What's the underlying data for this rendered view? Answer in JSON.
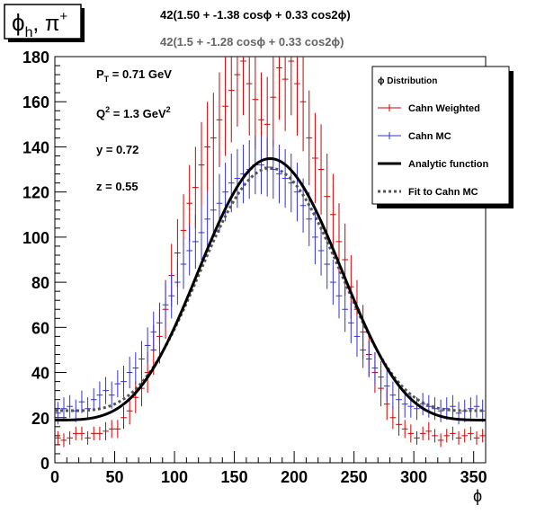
{
  "title_box": {
    "label": "ϕ",
    "sub": "h",
    "sep": ", ",
    "pi": "π",
    "sup": "+"
  },
  "formula_1": "42(1.50 + -1.38 cosϕ + 0.33 cos2ϕ)",
  "formula_2": "42(1.5 + -1.28 cosϕ + 0.33 cos2ϕ)",
  "kinematics": [
    {
      "base": "P",
      "sub": "T",
      "sup": "",
      "rest": " = 0.71 GeV"
    },
    {
      "base": "Q",
      "sub": "",
      "sup": "2",
      "rest": " = 1.3 GeV",
      "sup2": "2"
    },
    {
      "base": "y",
      "sub": "",
      "sup": "",
      "rest": " = 0.72"
    },
    {
      "base": "z",
      "sub": "",
      "sup": "",
      "rest": " = 0.55"
    }
  ],
  "legend": {
    "header": "ϕ Distribution",
    "entries": [
      "Cahn Weighted",
      "Cahn MC",
      "Analytic function",
      "Fit to Cahn MC"
    ]
  },
  "colors": {
    "weighted": "#cc0000",
    "mc": "#3333cc",
    "analytic": "#000000",
    "fit": "#555555"
  },
  "chart_data": {
    "type": "scatter",
    "xlabel": "ϕ",
    "ylabel": "",
    "xlim": [
      0,
      360
    ],
    "ylim": [
      0,
      180
    ],
    "xticks": [
      0,
      50,
      100,
      150,
      200,
      250,
      300,
      350
    ],
    "yticks": [
      0,
      20,
      40,
      60,
      80,
      100,
      120,
      140,
      160,
      180
    ],
    "bin_width": 5,
    "series": [
      {
        "name": "Cahn Weighted",
        "x": [
          2.5,
          7.5,
          12.5,
          17.5,
          22.5,
          27.5,
          32.5,
          37.5,
          42.5,
          47.5,
          52.5,
          57.5,
          62.5,
          67.5,
          72.5,
          77.5,
          82.5,
          87.5,
          92.5,
          97.5,
          102.5,
          107.5,
          112.5,
          117.5,
          122.5,
          127.5,
          132.5,
          137.5,
          142.5,
          147.5,
          152.5,
          157.5,
          162.5,
          167.5,
          172.5,
          177.5,
          182.5,
          187.5,
          192.5,
          197.5,
          202.5,
          207.5,
          212.5,
          217.5,
          222.5,
          227.5,
          232.5,
          237.5,
          242.5,
          247.5,
          252.5,
          257.5,
          262.5,
          267.5,
          272.5,
          277.5,
          282.5,
          287.5,
          292.5,
          297.5,
          302.5,
          307.5,
          312.5,
          317.5,
          322.5,
          327.5,
          332.5,
          337.5,
          342.5,
          347.5,
          352.5,
          357.5
        ],
        "y": [
          11,
          10,
          11,
          13,
          13,
          11,
          13,
          13,
          14,
          15,
          15,
          20,
          23,
          29,
          33,
          40,
          50,
          56,
          68,
          83,
          93,
          103,
          115,
          122,
          132,
          140,
          144,
          152,
          158,
          165,
          172,
          178,
          168,
          161,
          152,
          150,
          162,
          175,
          170,
          178,
          168,
          160,
          144,
          135,
          130,
          118,
          110,
          98,
          90,
          78,
          68,
          58,
          48,
          40,
          33,
          26,
          20,
          17,
          15,
          13,
          11,
          13,
          14,
          12,
          10,
          12,
          13,
          11,
          12,
          13,
          11,
          12
        ],
        "err": [
          3,
          3,
          3,
          3,
          3,
          3,
          3,
          3,
          4,
          4,
          4,
          5,
          6,
          7,
          8,
          9,
          11,
          12,
          13,
          14,
          15,
          16,
          17,
          18,
          19,
          20,
          20,
          21,
          22,
          23,
          23,
          24,
          23,
          22,
          21,
          21,
          22,
          23,
          23,
          24,
          23,
          22,
          21,
          20,
          20,
          19,
          18,
          17,
          16,
          14,
          13,
          12,
          10,
          9,
          8,
          7,
          5,
          5,
          4,
          4,
          3,
          3,
          4,
          3,
          3,
          3,
          3,
          3,
          3,
          3,
          3,
          3
        ]
      },
      {
        "name": "Cahn MC",
        "x": [
          2.5,
          7.5,
          12.5,
          17.5,
          22.5,
          27.5,
          32.5,
          37.5,
          42.5,
          47.5,
          52.5,
          57.5,
          62.5,
          67.5,
          72.5,
          77.5,
          82.5,
          87.5,
          92.5,
          97.5,
          102.5,
          107.5,
          112.5,
          117.5,
          122.5,
          127.5,
          132.5,
          137.5,
          142.5,
          147.5,
          152.5,
          157.5,
          162.5,
          167.5,
          172.5,
          177.5,
          182.5,
          187.5,
          192.5,
          197.5,
          202.5,
          207.5,
          212.5,
          217.5,
          222.5,
          227.5,
          232.5,
          237.5,
          242.5,
          247.5,
          252.5,
          257.5,
          262.5,
          267.5,
          272.5,
          277.5,
          282.5,
          287.5,
          292.5,
          297.5,
          302.5,
          307.5,
          312.5,
          317.5,
          322.5,
          327.5,
          332.5,
          337.5,
          342.5,
          347.5,
          352.5,
          357.5
        ],
        "y": [
          22,
          24,
          25,
          23,
          27,
          24,
          28,
          30,
          32,
          30,
          35,
          36,
          40,
          42,
          46,
          52,
          58,
          62,
          70,
          74,
          80,
          88,
          94,
          98,
          102,
          108,
          112,
          115,
          120,
          124,
          126,
          128,
          130,
          132,
          132,
          131,
          130,
          128,
          126,
          124,
          120,
          114,
          108,
          100,
          94,
          88,
          80,
          74,
          68,
          62,
          56,
          50,
          46,
          42,
          38,
          34,
          30,
          28,
          26,
          25,
          24,
          26,
          25,
          24,
          23,
          24,
          25,
          22,
          23,
          24,
          25,
          23
        ],
        "err": [
          5,
          5,
          5,
          5,
          5,
          5,
          5,
          6,
          6,
          6,
          6,
          7,
          7,
          7,
          8,
          8,
          9,
          9,
          10,
          10,
          10,
          11,
          11,
          12,
          12,
          12,
          12,
          13,
          13,
          13,
          13,
          13,
          13,
          13,
          13,
          13,
          13,
          13,
          13,
          13,
          13,
          12,
          12,
          12,
          11,
          11,
          10,
          10,
          10,
          9,
          9,
          8,
          8,
          7,
          7,
          7,
          6,
          6,
          6,
          5,
          5,
          5,
          5,
          5,
          5,
          5,
          5,
          5,
          5,
          5,
          5,
          5
        ]
      },
      {
        "name": "Analytic function",
        "formula": "42(1.50 + -1.38 cosϕ + 0.33 cos2ϕ)",
        "a": 42,
        "b": 1.5,
        "c": -1.38,
        "d": 0.33
      },
      {
        "name": "Fit to Cahn MC",
        "formula": "42(1.5 + -1.28 cosϕ + 0.33 cos2ϕ)",
        "a": 42,
        "b": 1.5,
        "c": -1.28,
        "d": 0.33
      }
    ]
  }
}
